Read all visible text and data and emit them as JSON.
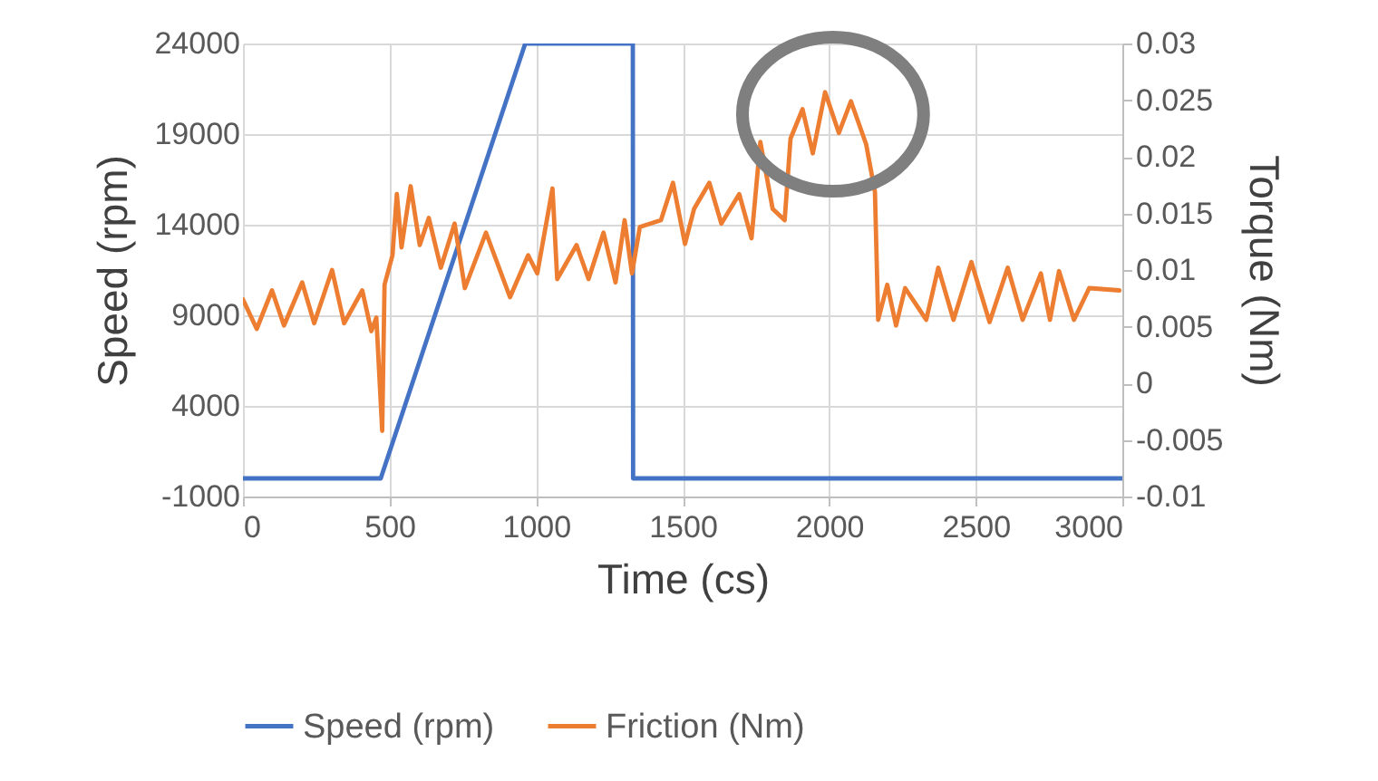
{
  "chart_data": {
    "type": "line",
    "xlabel": "Time (cs)",
    "ylabel": "Speed (rpm)",
    "y2label": "Torque (Nm)",
    "xlim": [
      0,
      3000
    ],
    "xticks": [
      0,
      500,
      1000,
      1500,
      2000,
      2500,
      3000
    ],
    "ylim": [
      -1000,
      24000
    ],
    "yticks": [
      -1000,
      4000,
      9000,
      14000,
      19000,
      24000
    ],
    "y2lim": [
      -0.01,
      0.03
    ],
    "y2ticks": [
      -0.01,
      -0.005,
      0,
      0.005,
      0.01,
      0.015,
      0.02,
      0.025,
      0.03
    ],
    "grid": true,
    "legend": "bottom",
    "series": [
      {
        "name": "Speed (rpm)",
        "color": "#4472c4",
        "x": [
          0,
          470,
          963,
          1330,
          1331,
          3000
        ],
        "values": [
          0,
          0,
          24000,
          24000,
          0,
          0
        ]
      },
      {
        "name": "Friction (Nm)",
        "color": "#ed7d31",
        "axis": "y2",
        "x": [
          0,
          47,
          99,
          140,
          202,
          243,
          304,
          345,
          407,
          438,
          455,
          475,
          483,
          510,
          525,
          541,
          572,
          603,
          634,
          675,
          722,
          757,
          829,
          911,
          973,
          1004,
          1056,
          1072,
          1138,
          1179,
          1230,
          1271,
          1302,
          1327,
          1354,
          1426,
          1467,
          1508,
          1539,
          1591,
          1632,
          1693,
          1735,
          1765,
          1807,
          1848,
          1868,
          1909,
          1944,
          1986,
          2033,
          2074,
          2126,
          2156,
          2167,
          2198,
          2228,
          2259,
          2331,
          2372,
          2424,
          2485,
          2547,
          2609,
          2660,
          2722,
          2753,
          2784,
          2835,
          2887,
          2990
        ],
        "values": [
          0.0074,
          0.0048,
          0.0082,
          0.0051,
          0.0089,
          0.0053,
          0.01,
          0.0053,
          0.0082,
          0.0046,
          0.0058,
          -0.0042,
          0.0087,
          0.0113,
          0.0167,
          0.012,
          0.0174,
          0.0122,
          0.0146,
          0.0102,
          0.0141,
          0.0084,
          0.0133,
          0.0076,
          0.0113,
          0.0097,
          0.0172,
          0.0092,
          0.0122,
          0.0092,
          0.0133,
          0.0089,
          0.0144,
          0.0097,
          0.0138,
          0.0144,
          0.0177,
          0.0123,
          0.0154,
          0.0177,
          0.0141,
          0.0167,
          0.0128,
          0.0213,
          0.0154,
          0.0144,
          0.0216,
          0.0242,
          0.0203,
          0.0257,
          0.0221,
          0.0249,
          0.0211,
          0.0169,
          0.0056,
          0.0087,
          0.0051,
          0.0084,
          0.0056,
          0.0102,
          0.0056,
          0.0107,
          0.0054,
          0.0102,
          0.0056,
          0.0097,
          0.0056,
          0.0099,
          0.0056,
          0.0084,
          0.0082
        ]
      }
    ]
  }
}
